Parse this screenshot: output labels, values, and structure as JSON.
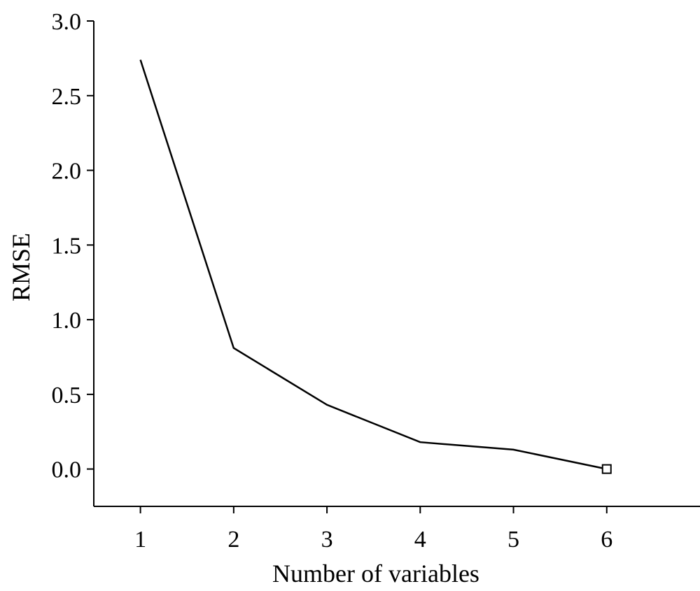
{
  "chart_data": {
    "type": "line",
    "title": "",
    "xlabel": "Number of variables",
    "ylabel": "RMSE",
    "xlim": [
      0.5,
      7.0
    ],
    "ylim": [
      -0.25,
      3.0
    ],
    "x_ticks": [
      1,
      2,
      3,
      4,
      5,
      6
    ],
    "x_tick_labels": [
      "1",
      "2",
      "3",
      "4",
      "5",
      "6"
    ],
    "y_ticks": [
      0.0,
      0.5,
      1.0,
      1.5,
      2.0,
      2.5,
      3.0
    ],
    "y_tick_labels": [
      "0.0",
      "0.5",
      "1.0",
      "1.5",
      "2.0",
      "2.5",
      "3.0"
    ],
    "grid": false,
    "series": [
      {
        "x": [
          1,
          2,
          3,
          4,
          5,
          6
        ],
        "values": [
          2.74,
          0.81,
          0.43,
          0.18,
          0.13,
          0.0
        ],
        "color": "#000000",
        "marker_at_x": 6,
        "marker_shape": "open-square"
      }
    ]
  }
}
